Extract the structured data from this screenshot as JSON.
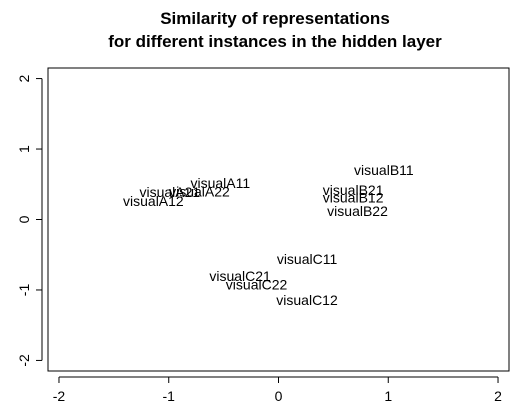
{
  "chart_data": {
    "type": "scatter",
    "title_lines": [
      "Similarity of representations",
      "for different instances in the hidden layer"
    ],
    "xlabel": "",
    "ylabel": "",
    "xlim": [
      -2.1,
      2.1
    ],
    "ylim": [
      -2.15,
      2.15
    ],
    "x_ticks": [
      -2,
      -1,
      0,
      1,
      2
    ],
    "y_ticks": [
      -2,
      -1,
      0,
      1,
      2
    ],
    "grid": false,
    "points": [
      {
        "label": "visualA11",
        "x": -0.53,
        "y": 0.52
      },
      {
        "label": "visualA21",
        "x": -0.99,
        "y": 0.39
      },
      {
        "label": "visualA22",
        "x": -0.72,
        "y": 0.4
      },
      {
        "label": "visualA12",
        "x": -1.14,
        "y": 0.26
      },
      {
        "label": "visualB11",
        "x": 0.96,
        "y": 0.7
      },
      {
        "label": "visualB21",
        "x": 0.68,
        "y": 0.42
      },
      {
        "label": "visualB12",
        "x": 0.68,
        "y": 0.31
      },
      {
        "label": "visualB22",
        "x": 0.72,
        "y": 0.12
      },
      {
        "label": "visualC11",
        "x": 0.26,
        "y": -0.56
      },
      {
        "label": "visualC21",
        "x": -0.35,
        "y": -0.8
      },
      {
        "label": "visualC22",
        "x": -0.2,
        "y": -0.92
      },
      {
        "label": "visualC12",
        "x": 0.26,
        "y": -1.14
      }
    ]
  }
}
